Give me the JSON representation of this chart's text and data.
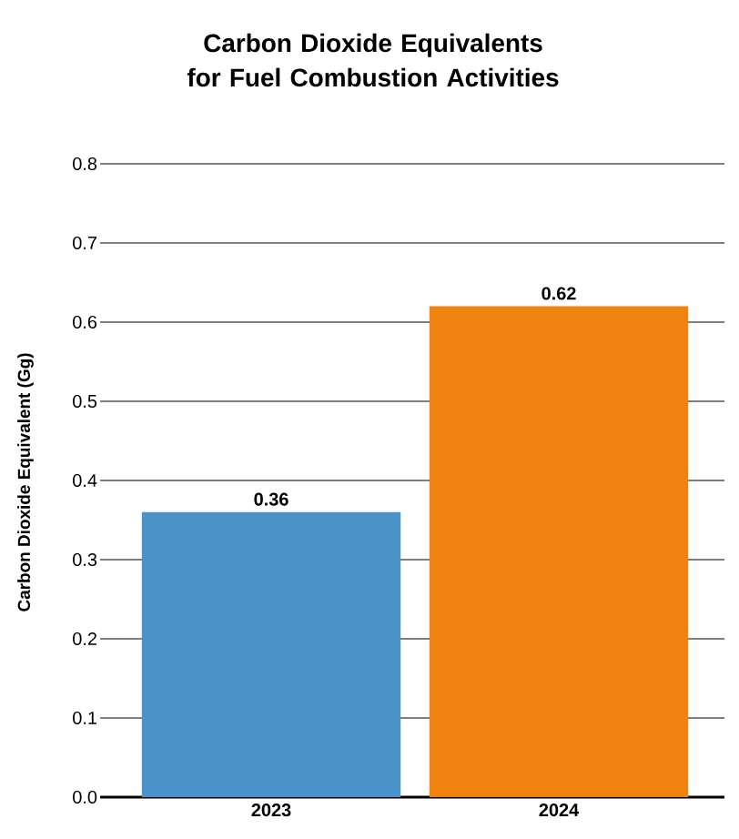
{
  "chart_data": {
    "type": "bar",
    "title": "Carbon Dioxide Equivalents for Fuel Combustion Activities",
    "ylabel": "Carbon Dioxide Equivalent (Gg)",
    "categories": [
      "2023",
      "2024"
    ],
    "values": [
      0.36,
      0.62
    ],
    "colors": [
      "#4a93c9",
      "#f0820f"
    ],
    "ylim": [
      0,
      0.8
    ],
    "yticks": [
      {
        "value": 0,
        "label": "0.0"
      },
      0.1,
      0.2,
      0.3,
      0.4,
      0.5,
      0.6,
      0.7,
      0.8
    ],
    "grid": "y",
    "data_labels": true
  }
}
